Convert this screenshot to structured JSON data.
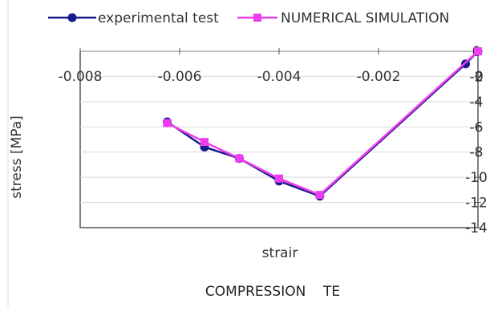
{
  "chart_data": {
    "type": "line",
    "title": "COMPRESSION    TE",
    "xlabel": "strair",
    "ylabel": "stress    [MPa]",
    "xlim": [
      -0.008,
      0
    ],
    "ylim": [
      -14,
      0
    ],
    "x_ticks": [
      -0.008,
      -0.006,
      -0.004,
      -0.002,
      0
    ],
    "x_tick_labels": [
      "-0.008",
      "-0.006",
      "-0.004",
      "-0.002",
      "0"
    ],
    "y_ticks": [
      0,
      -2,
      -4,
      -6,
      -8,
      -10,
      -12,
      -14
    ],
    "y_tick_labels": [
      "0",
      "-2",
      "-4",
      "-6",
      "-8",
      "-10",
      "-12",
      "-14"
    ],
    "grid": true,
    "legend_position": "top",
    "series": [
      {
        "name": "experimental test",
        "color": "#1a1a8c",
        "marker": "circle",
        "x": [
          -0.00625,
          -0.0055,
          -0.0048,
          -0.004,
          -0.00318,
          -0.00025,
          0
        ],
        "y": [
          -5.6,
          -7.6,
          -8.5,
          -10.3,
          -11.5,
          -1.0,
          0
        ]
      },
      {
        "name": "NUMERICAL SIMULATION",
        "color": "#f03cf0",
        "marker": "square",
        "x": [
          -0.00625,
          -0.0055,
          -0.0048,
          -0.004,
          -0.00318,
          0
        ],
        "y": [
          -5.7,
          -7.2,
          -8.5,
          -10.1,
          -11.4,
          0
        ]
      }
    ]
  }
}
